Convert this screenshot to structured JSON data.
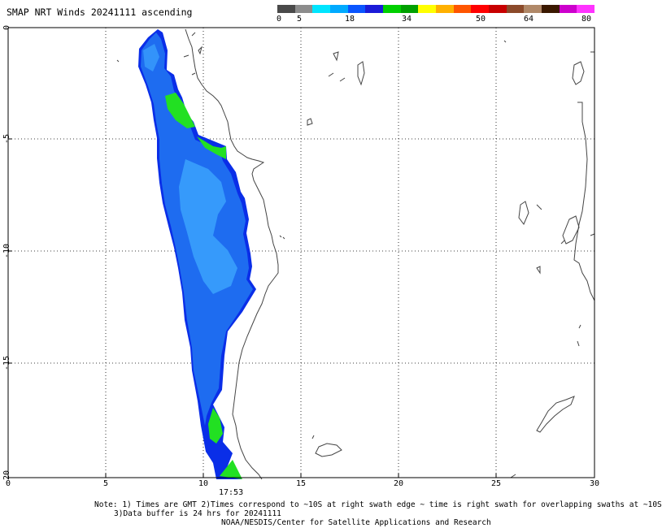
{
  "title": "SMAP NRT Winds 20241111 ascending",
  "colorbar": {
    "labels": [
      "0",
      "5",
      "18",
      "34",
      "50",
      "64",
      "80"
    ],
    "segments": [
      "#4a4a4a",
      "#8c8c8c",
      "#00e5ff",
      "#00aaff",
      "#0a55ff",
      "#1b1bd8",
      "#00d000",
      "#00a000",
      "#ffff00",
      "#ffb000",
      "#ff5500",
      "#ff0000",
      "#c80000",
      "#8b4a2a",
      "#b08868",
      "#3a1800",
      "#cc00cc",
      "#ff33ff"
    ]
  },
  "axes": {
    "x_ticks": [
      "0",
      "5",
      "10",
      "15",
      "20",
      "25",
      "30"
    ],
    "y_ticks": [
      "0",
      "-5",
      "-10",
      "-15",
      "-20"
    ]
  },
  "swath_time": "17:53",
  "notes": {
    "line1": "Note: 1) Times are GMT 2)Times correspond to ~10S at right swath edge ~ time is right swath for overlapping swaths at ~10S",
    "line2": "3)Data buffer is 24 hrs for 20241111",
    "line3": "NOAA/NESDIS/Center for Satellite Applications and Research"
  },
  "colors": {
    "swath_blue": "#1e6cf0",
    "swath_light": "#3fa9ff",
    "swath_dark": "#0a2ee8",
    "high_wind": "#22e022"
  }
}
